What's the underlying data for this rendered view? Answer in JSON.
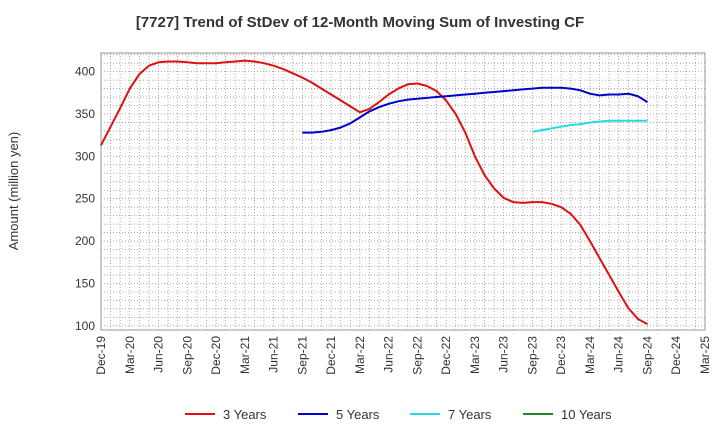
{
  "chart_data": {
    "type": "line",
    "title": "[7727]  Trend of StDev of 12-Month Moving Sum of Investing CF",
    "xlabel": "",
    "ylabel": "Amount (million yen)",
    "ylim": [
      95,
      422
    ],
    "yticks": [
      100,
      150,
      200,
      250,
      300,
      350,
      400
    ],
    "grid": true,
    "legend_position": "bottom",
    "x_tick_labels": [
      "Dec-19",
      "Mar-20",
      "Jun-20",
      "Sep-20",
      "Dec-20",
      "Mar-21",
      "Jun-21",
      "Sep-21",
      "Dec-21",
      "Mar-22",
      "Jun-22",
      "Sep-22",
      "Dec-22",
      "Mar-23",
      "Jun-23",
      "Sep-23",
      "Dec-23",
      "Mar-24",
      "Jun-24",
      "Sep-24",
      "Dec-24",
      "Mar-25"
    ],
    "series": [
      {
        "name": "3 Years",
        "color": "#dd1111",
        "x": [
          "Dec-19",
          "Jan-20",
          "Feb-20",
          "Mar-20",
          "Apr-20",
          "May-20",
          "Jun-20",
          "Jul-20",
          "Aug-20",
          "Sep-20",
          "Oct-20",
          "Nov-20",
          "Dec-20",
          "Jan-21",
          "Feb-21",
          "Mar-21",
          "Apr-21",
          "May-21",
          "Jun-21",
          "Jul-21",
          "Aug-21",
          "Sep-21",
          "Oct-21",
          "Nov-21",
          "Dec-21",
          "Jan-22",
          "Feb-22",
          "Mar-22",
          "Apr-22",
          "May-22",
          "Jun-22",
          "Jul-22",
          "Aug-22",
          "Sep-22",
          "Oct-22",
          "Nov-22",
          "Dec-22",
          "Jan-23",
          "Feb-23",
          "Mar-23",
          "Apr-23",
          "May-23",
          "Jun-23",
          "Jul-23",
          "Aug-23",
          "Sep-23",
          "Oct-23",
          "Nov-23",
          "Dec-23",
          "Jan-24",
          "Feb-24",
          "Mar-24",
          "Apr-24",
          "May-24",
          "Jun-24",
          "Jul-24",
          "Aug-24",
          "Sep-24"
        ],
        "values": [
          313,
          335,
          357,
          380,
          397,
          407,
          411,
          412,
          412,
          411,
          410,
          410,
          410,
          411,
          412,
          413,
          412,
          410,
          407,
          403,
          398,
          393,
          387,
          380,
          373,
          366,
          359,
          352,
          356,
          364,
          373,
          380,
          385,
          386,
          383,
          377,
          366,
          350,
          328,
          300,
          278,
          262,
          251,
          246,
          245,
          246,
          246,
          244,
          240,
          232,
          219,
          200,
          180,
          160,
          140,
          121,
          108,
          102
        ]
      },
      {
        "name": "5 Years",
        "color": "#0000cc",
        "x": [
          "Sep-21",
          "Oct-21",
          "Nov-21",
          "Dec-21",
          "Jan-22",
          "Feb-22",
          "Mar-22",
          "Apr-22",
          "May-22",
          "Jun-22",
          "Jul-22",
          "Aug-22",
          "Sep-22",
          "Oct-22",
          "Nov-22",
          "Dec-22",
          "Jan-23",
          "Feb-23",
          "Mar-23",
          "Apr-23",
          "May-23",
          "Jun-23",
          "Jul-23",
          "Aug-23",
          "Sep-23",
          "Oct-23",
          "Nov-23",
          "Dec-23",
          "Jan-24",
          "Feb-24",
          "Mar-24",
          "Apr-24",
          "May-24",
          "Jun-24",
          "Jul-24",
          "Aug-24",
          "Sep-24"
        ],
        "values": [
          328,
          328,
          329,
          331,
          334,
          339,
          346,
          353,
          358,
          362,
          365,
          367,
          368,
          369,
          370,
          371,
          372,
          373,
          374,
          375,
          376,
          377,
          378,
          379,
          380,
          381,
          381,
          381,
          380,
          378,
          374,
          372,
          373,
          373,
          374,
          371,
          364
        ]
      },
      {
        "name": "7 Years",
        "color": "#22dddd",
        "x": [
          "Sep-23",
          "Oct-23",
          "Nov-23",
          "Dec-23",
          "Jan-24",
          "Feb-24",
          "Mar-24",
          "Apr-24",
          "May-24",
          "Jun-24",
          "Jul-24",
          "Aug-24",
          "Sep-24"
        ],
        "values": [
          329,
          331,
          333,
          335,
          337,
          338,
          340,
          341,
          342,
          342,
          342,
          342,
          342
        ]
      },
      {
        "name": "10 Years",
        "color": "#228822",
        "x": [],
        "values": []
      }
    ]
  }
}
